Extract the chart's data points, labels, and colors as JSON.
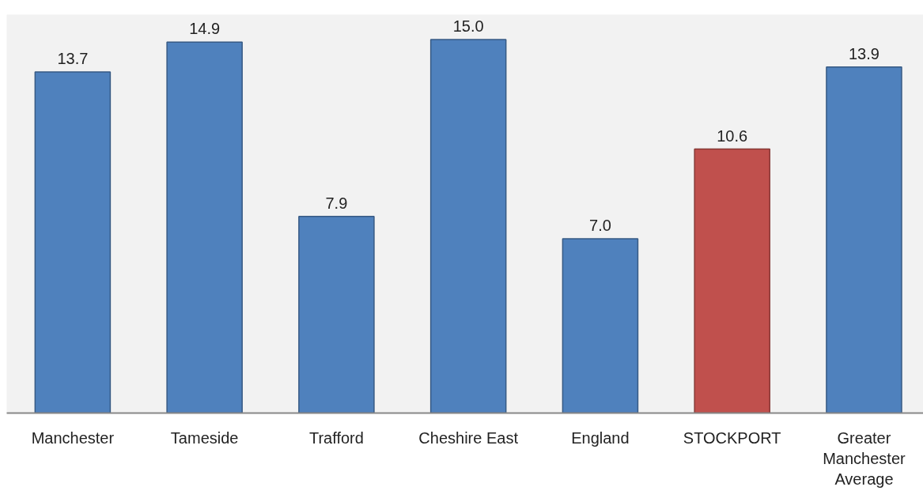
{
  "chart_data": {
    "type": "bar",
    "categories": [
      "Manchester",
      "Tameside",
      "Trafford",
      "Cheshire East",
      "England",
      "STOCKPORT",
      "Greater Manchester Average"
    ],
    "values": [
      13.7,
      14.9,
      7.9,
      15.0,
      7.0,
      10.6,
      13.9
    ],
    "value_labels": [
      "13.7",
      "14.9",
      "7.9",
      "15.0",
      "7.0",
      "10.6",
      "13.9"
    ],
    "colors": [
      "#4f81bd",
      "#4f81bd",
      "#4f81bd",
      "#4f81bd",
      "#4f81bd",
      "#c0504d",
      "#4f81bd"
    ],
    "ylim": [
      0,
      16
    ],
    "grid": false
  }
}
